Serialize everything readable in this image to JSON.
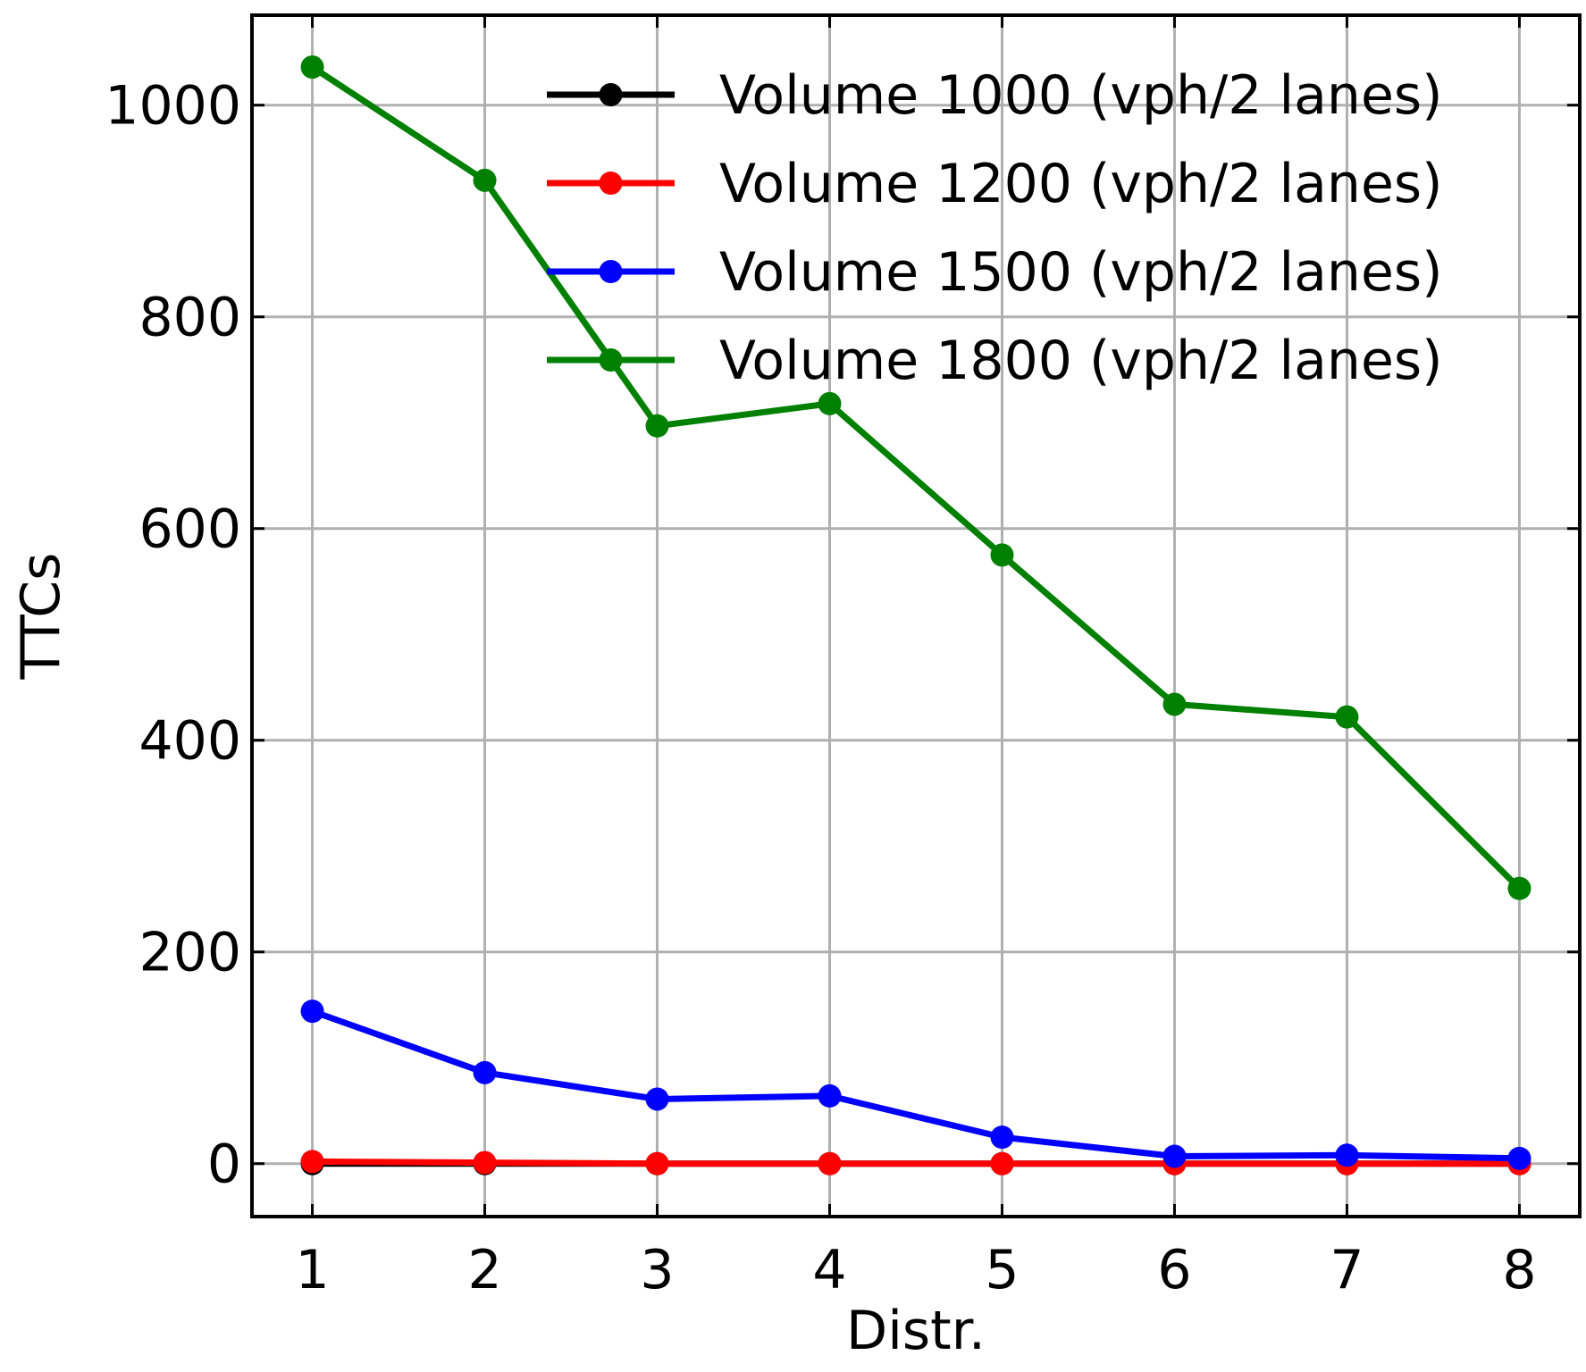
{
  "chart_data": {
    "type": "line",
    "title": "",
    "xlabel": "Distr.",
    "ylabel": "TTCs",
    "x": [
      1,
      2,
      3,
      4,
      5,
      6,
      7,
      8
    ],
    "xticks": [
      "1",
      "2",
      "3",
      "4",
      "5",
      "6",
      "7",
      "8"
    ],
    "yticks": [
      "0",
      "200",
      "400",
      "600",
      "800",
      "1000"
    ],
    "xlim": [
      0.65,
      8.35
    ],
    "ylim": [
      -50,
      1085
    ],
    "grid": true,
    "legend_position": "upper-right",
    "series": [
      {
        "name": "Volume 1000 (vph/2 lanes)",
        "color": "#000000",
        "values": [
          0,
          0,
          0,
          0,
          0,
          0,
          0,
          0
        ]
      },
      {
        "name": "Volume 1200 (vph/2 lanes)",
        "color": "#ff0000",
        "values": [
          2,
          1,
          0,
          0,
          0,
          0,
          0,
          0
        ]
      },
      {
        "name": "Volume 1500 (vph/2 lanes)",
        "color": "#0000ff",
        "values": [
          144,
          86,
          61,
          64,
          25,
          7,
          8,
          5
        ]
      },
      {
        "name": "Volume 1800 (vph/2 lanes)",
        "color": "#008000",
        "values": [
          1036,
          929,
          697,
          718,
          575,
          434,
          422,
          260
        ]
      }
    ]
  }
}
